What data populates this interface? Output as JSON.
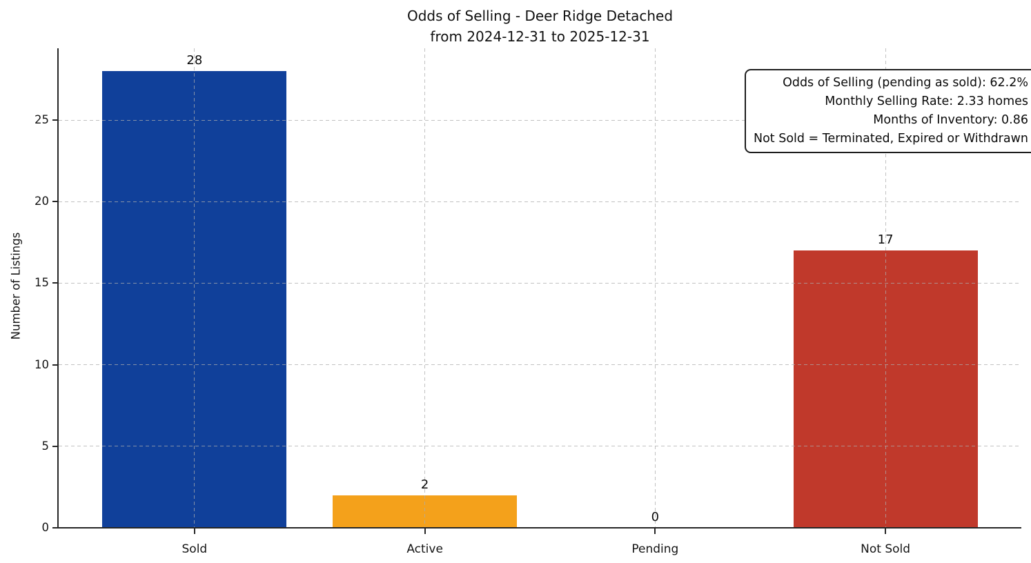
{
  "chart_data": {
    "type": "bar",
    "title": "Odds of Selling - Deer Ridge Detached",
    "subtitle": "from 2024-12-31 to 2025-12-31",
    "categories": [
      "Sold",
      "Active",
      "Pending",
      "Not Sold"
    ],
    "values": [
      28,
      2,
      0,
      17
    ],
    "bar_labels": [
      "28",
      "2",
      "0",
      "17"
    ],
    "colors": [
      "#10409a",
      "#f4a11b",
      null,
      "#c0392b"
    ],
    "xlabel": "",
    "ylabel": "Number of Listings",
    "ylim": [
      0,
      29.4
    ],
    "yticks": [
      0,
      5,
      10,
      15,
      20,
      25
    ],
    "grid": "dashed, drawn over bars, horizontal and vertical at category centers",
    "legend": "none",
    "annotation": {
      "position": "top-right",
      "lines": [
        "Odds of Selling (pending as sold): 62.2%",
        "Monthly Selling Rate: 2.33 homes",
        "Months of Inventory: 0.86",
        "Not Sold = Terminated, Expired or Withdrawn"
      ]
    }
  },
  "style": {
    "spine_color": "#262626",
    "grid_color": "rgba(172,172,172,0.75)",
    "background": "#ffffff",
    "text_color": "#141414"
  }
}
